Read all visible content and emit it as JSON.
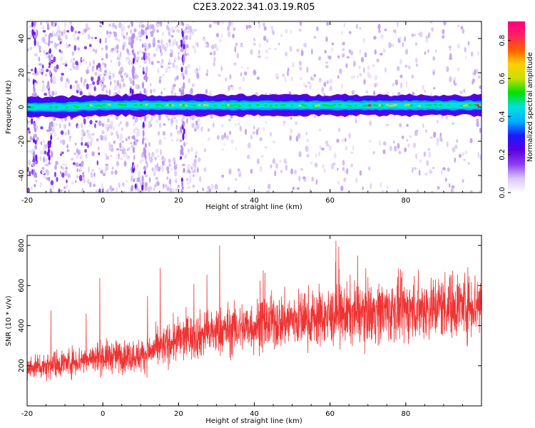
{
  "title": "C2E3.2022.341.03.19.R05",
  "chart_data": [
    {
      "type": "heatmap",
      "xlabel": "Height of straight line (km)",
      "ylabel": "Frequency (Hz)",
      "xlim": [
        -20,
        100
      ],
      "ylim": [
        -50,
        50
      ],
      "xticks": [
        -20,
        0,
        20,
        40,
        60,
        80
      ],
      "yticks": [
        -40,
        -20,
        0,
        20,
        40
      ],
      "colorbar": {
        "label": "Normalized spectral amplitude",
        "range": [
          0.0,
          0.9
        ],
        "ticks": [
          0.0,
          0.2,
          0.4,
          0.6,
          0.8
        ],
        "colormap": [
          "#ffffff",
          "#d9c6f5",
          "#8b3cf0",
          "#5a00e0",
          "#1a1aff",
          "#00b0ff",
          "#00e0e0",
          "#00e000",
          "#c8e000",
          "#ffd000",
          "#ff6000",
          "#ff2060",
          "#ff0080"
        ]
      },
      "series": [
        {
          "x": [
            -20,
            -10,
            0,
            10,
            20,
            30,
            40,
            50,
            60,
            70,
            80,
            90,
            100
          ],
          "y": [
            0,
            0,
            1,
            1,
            1,
            1,
            1,
            1,
            1,
            1,
            1,
            1,
            1
          ]
        }
      ]
    },
    {
      "type": "line",
      "xlabel": "Height of straight line (km)",
      "ylabel": "SNR (10 * v/v)",
      "xlim": [
        -20,
        100
      ],
      "ylim": [
        0,
        850
      ],
      "xticks": [
        -20,
        0,
        20,
        40,
        60,
        80
      ],
      "yticks": [
        200,
        400,
        600,
        800
      ],
      "color": "#ee3333",
      "series": [
        {
          "x": [
            -20,
            -10,
            0,
            10,
            20,
            30,
            40,
            50,
            60,
            70,
            80,
            90,
            100
          ],
          "y": [
            190,
            215,
            245,
            250,
            330,
            370,
            400,
            430,
            445,
            470,
            475,
            500,
            510
          ]
        }
      ]
    }
  ]
}
